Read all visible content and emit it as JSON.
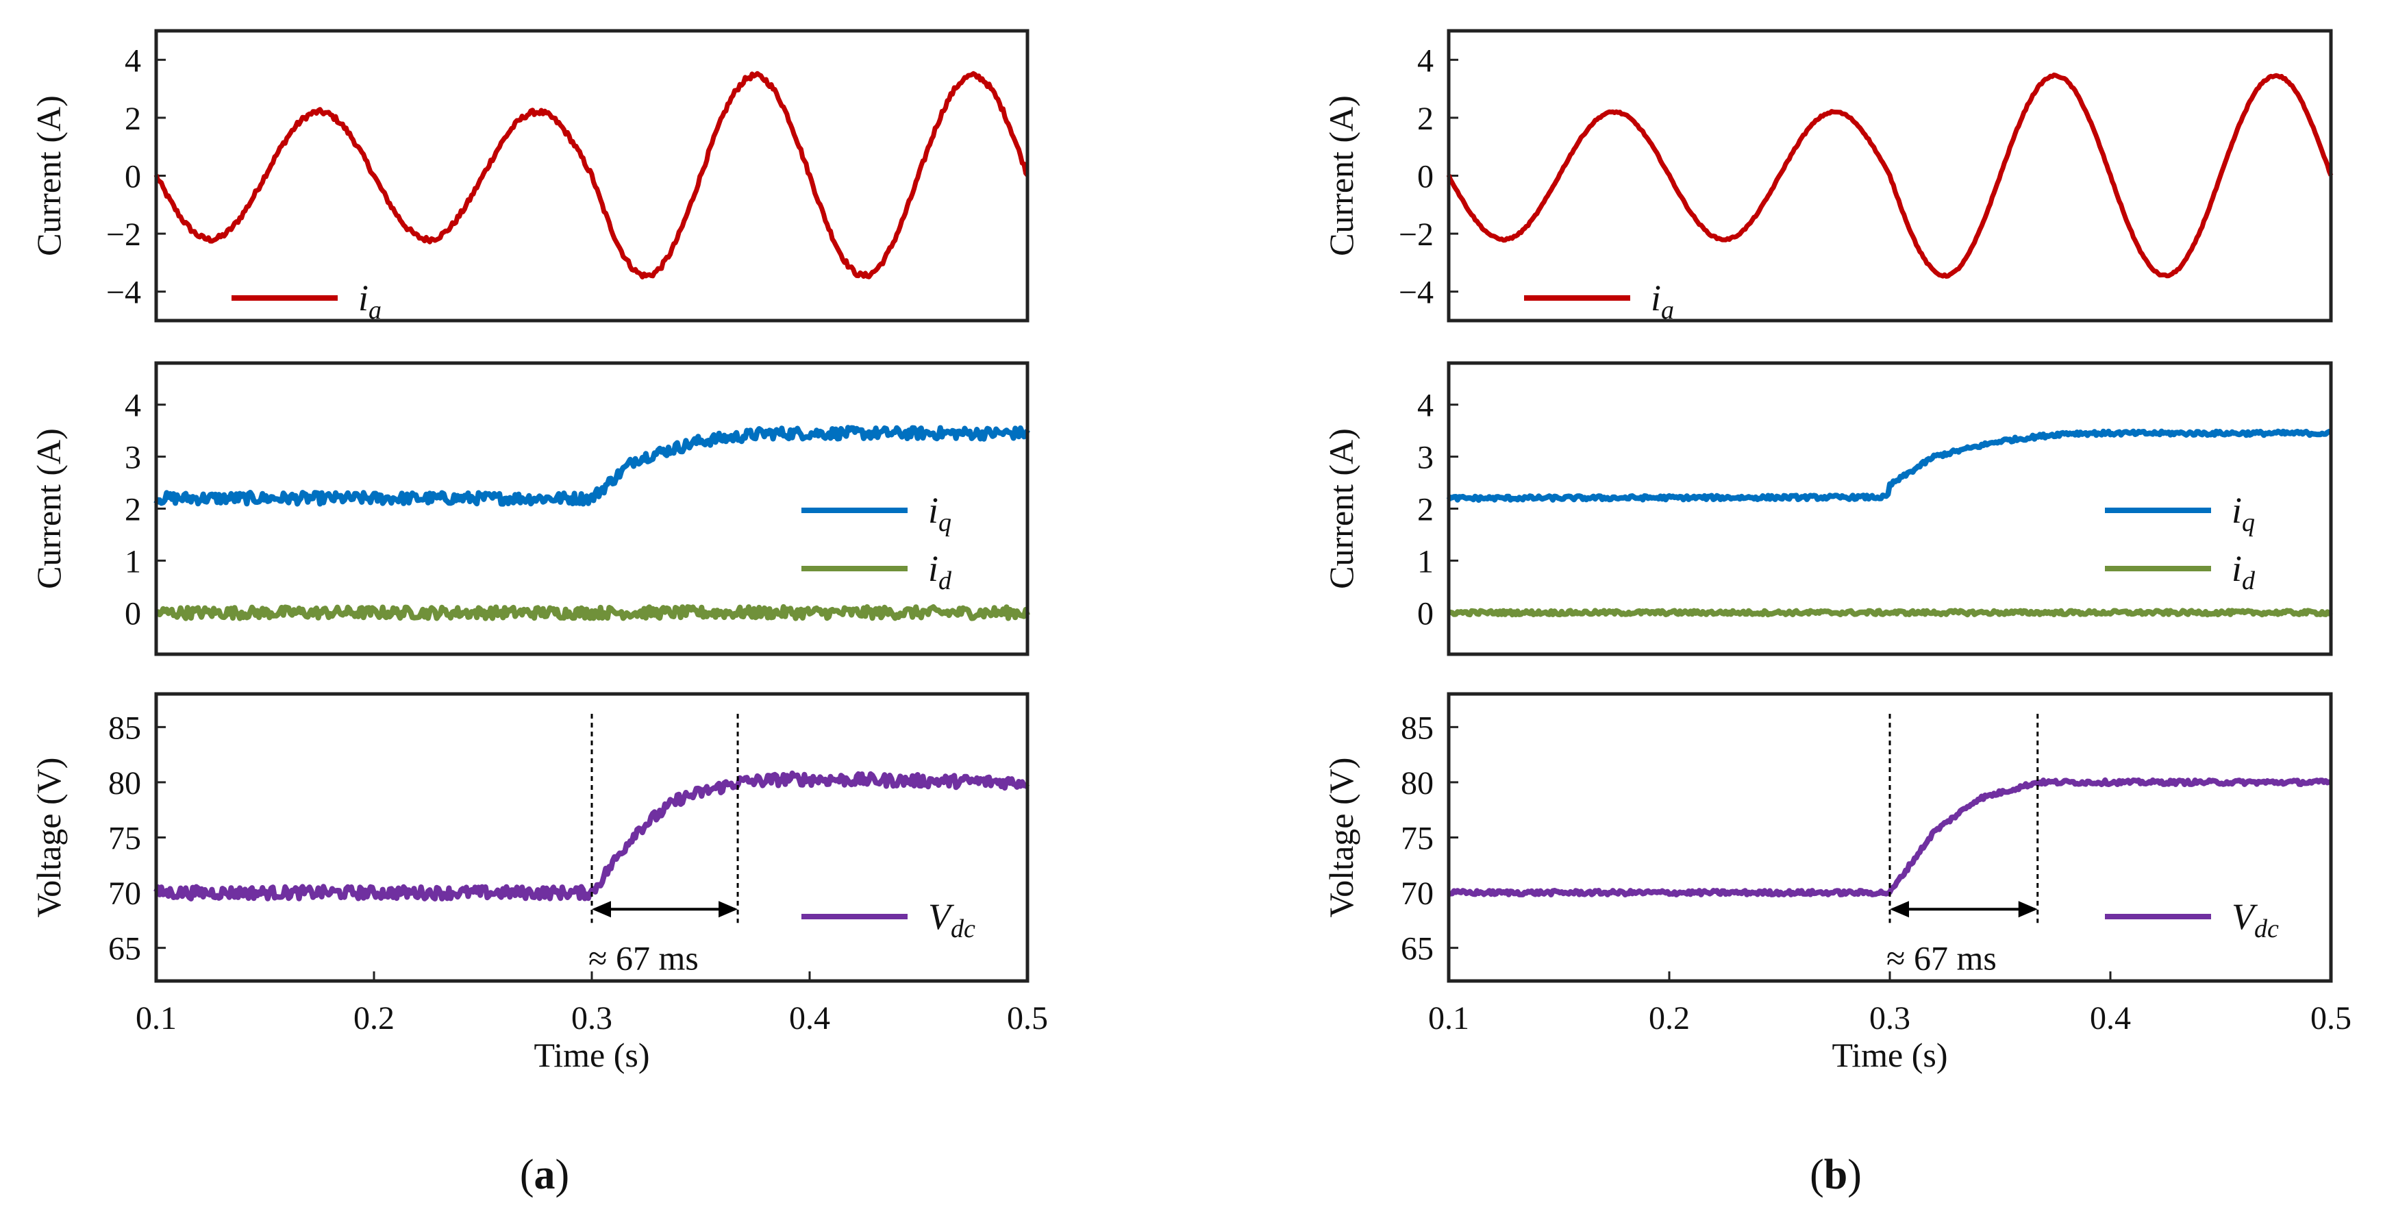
{
  "colors": {
    "ia": "#C00000",
    "iq": "#0070C0",
    "id": "#70913A",
    "vdc": "#7030A0",
    "frame": "#222222",
    "marker": "#000000"
  },
  "panels": [
    {
      "caption_letter": "a",
      "caption_open": "(",
      "caption_close": ")",
      "xlabel": "Time (s)",
      "xticks": [
        "0.1",
        "0.2",
        "0.3",
        "0.4",
        "0.5"
      ],
      "annotation": "≈  67 ms",
      "noise": 1.0
    },
    {
      "caption_letter": "b",
      "caption_open": "(",
      "caption_close": ")",
      "xlabel": "Time (s)",
      "xticks": [
        "0.1",
        "0.2",
        "0.3",
        "0.4",
        "0.5"
      ],
      "annotation": "≈  67 ms",
      "noise": 0.35
    }
  ],
  "chart_data": [
    {
      "type": "line",
      "panel": "a",
      "subplot": "top",
      "ylabel": "Current (A)",
      "yticks": [
        "4",
        "2",
        "0",
        "−2",
        "−4"
      ],
      "ylim": [
        -5,
        5
      ],
      "xlim": [
        0.1,
        0.5
      ],
      "series": [
        {
          "name": "i",
          "sub": "a",
          "description": "sinusoid, 10 Hz, amplitude 2.2 A before 0.3 s and 3.45 A after",
          "x": [
            0.1,
            0.125,
            0.15,
            0.175,
            0.2,
            0.225,
            0.25,
            0.275,
            0.3,
            0.325,
            0.35,
            0.375,
            0.4,
            0.425,
            0.45,
            0.475,
            0.5
          ],
          "y": [
            0,
            -2.2,
            0,
            2.2,
            0,
            -2.2,
            0,
            2.2,
            0,
            -3.3,
            0,
            3.45,
            0,
            -3.45,
            0,
            3.45,
            0
          ]
        }
      ]
    },
    {
      "type": "line",
      "panel": "a",
      "subplot": "middle",
      "ylabel": "Current (A)",
      "yticks": [
        "4",
        "3",
        "2",
        "1",
        "0"
      ],
      "ylim": [
        -0.8,
        4.8
      ],
      "xlim": [
        0.1,
        0.5
      ],
      "series": [
        {
          "name": "i",
          "sub": "q",
          "x": [
            0.1,
            0.29,
            0.3,
            0.32,
            0.35,
            0.38,
            0.5
          ],
          "y": [
            2.2,
            2.2,
            2.2,
            2.95,
            3.3,
            3.45,
            3.45
          ]
        },
        {
          "name": "i",
          "sub": "d",
          "x": [
            0.1,
            0.5
          ],
          "y": [
            0,
            0
          ]
        }
      ]
    },
    {
      "type": "line",
      "panel": "a",
      "subplot": "bottom",
      "ylabel": "Voltage (V)",
      "yticks": [
        "85",
        "80",
        "75",
        "70",
        "65"
      ],
      "ylim": [
        62,
        88
      ],
      "xlim": [
        0.1,
        0.5
      ],
      "xlabel": "Time (s)",
      "series": [
        {
          "name": "V",
          "sub": "dc",
          "x": [
            0.1,
            0.3,
            0.32,
            0.34,
            0.367,
            0.39,
            0.5
          ],
          "y": [
            70,
            70,
            75.5,
            78.5,
            80,
            80.3,
            80
          ]
        }
      ],
      "annotations": [
        {
          "text": "≈  67 ms",
          "x_start": 0.3,
          "x_end": 0.367
        }
      ]
    },
    {
      "type": "line",
      "panel": "b",
      "subplot": "top",
      "ylabel": "Current (A)",
      "yticks": [
        "4",
        "2",
        "0",
        "−2",
        "−4"
      ],
      "ylim": [
        -5,
        5
      ],
      "xlim": [
        0.1,
        0.5
      ],
      "series": [
        {
          "name": "i",
          "sub": "a",
          "description": "sinusoid, 10 Hz, amplitude 2.2 A before 0.3 s and 3.45 A after",
          "x": [
            0.1,
            0.125,
            0.15,
            0.175,
            0.2,
            0.225,
            0.25,
            0.275,
            0.3,
            0.325,
            0.35,
            0.375,
            0.4,
            0.425,
            0.45,
            0.475,
            0.5
          ],
          "y": [
            0,
            -2.2,
            0,
            2.2,
            0,
            -2.2,
            0,
            2.2,
            0,
            -3.3,
            0,
            3.45,
            0,
            -3.45,
            0,
            3.45,
            0
          ]
        }
      ]
    },
    {
      "type": "line",
      "panel": "b",
      "subplot": "middle",
      "ylabel": "Current (A)",
      "yticks": [
        "4",
        "3",
        "2",
        "1",
        "0"
      ],
      "ylim": [
        -0.8,
        4.8
      ],
      "xlim": [
        0.1,
        0.5
      ],
      "series": [
        {
          "name": "i",
          "sub": "q",
          "x": [
            0.1,
            0.299,
            0.3,
            0.32,
            0.35,
            0.38,
            0.5
          ],
          "y": [
            2.2,
            2.22,
            2.45,
            3.0,
            3.3,
            3.45,
            3.45
          ]
        },
        {
          "name": "i",
          "sub": "d",
          "x": [
            0.1,
            0.5
          ],
          "y": [
            0,
            0
          ]
        }
      ]
    },
    {
      "type": "line",
      "panel": "b",
      "subplot": "bottom",
      "ylabel": "Voltage (V)",
      "yticks": [
        "85",
        "80",
        "75",
        "70",
        "65"
      ],
      "ylim": [
        62,
        88
      ],
      "xlim": [
        0.1,
        0.5
      ],
      "xlabel": "Time (s)",
      "series": [
        {
          "name": "V",
          "sub": "dc",
          "x": [
            0.1,
            0.3,
            0.32,
            0.34,
            0.367,
            0.5
          ],
          "y": [
            70,
            70,
            75.5,
            78.5,
            80,
            80
          ]
        }
      ],
      "annotations": [
        {
          "text": "≈  67 ms",
          "x_start": 0.3,
          "x_end": 0.367
        }
      ]
    }
  ]
}
